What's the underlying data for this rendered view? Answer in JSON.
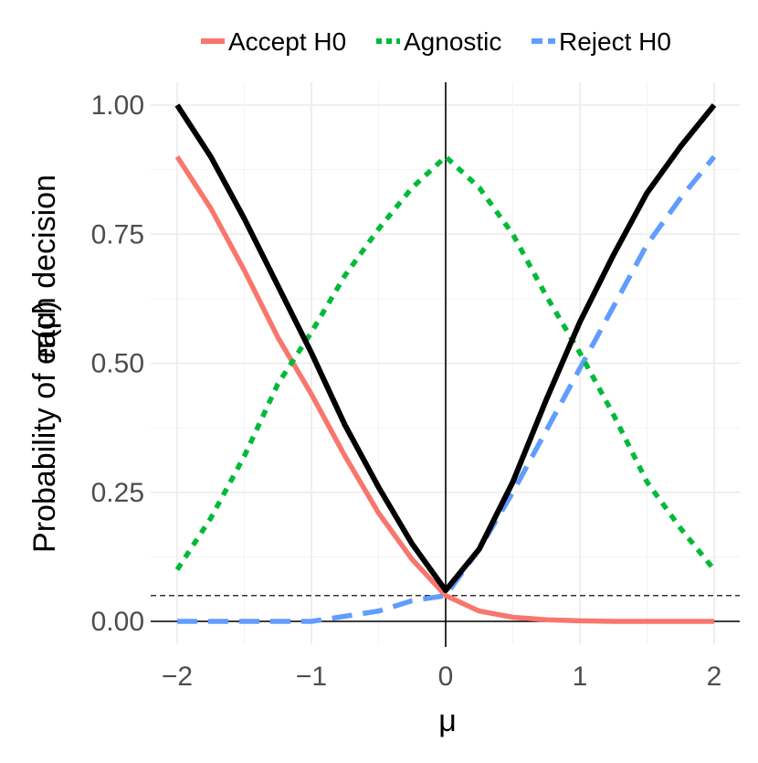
{
  "chart_data": {
    "type": "line",
    "xlabel": "μ",
    "ylabel": "Probability of each decision",
    "ylabel_overlay": "π(μ)",
    "xlim": [
      -2.2,
      2.2
    ],
    "ylim": [
      0,
      1
    ],
    "grid": true,
    "legend_position": "top",
    "x_ticks": [
      -2,
      -1,
      0,
      1,
      2
    ],
    "x_tick_labels": [
      "−2",
      "−1",
      "0",
      "1",
      "2"
    ],
    "y_ticks": [
      0,
      0.25,
      0.5,
      0.75,
      1.0
    ],
    "y_tick_labels": [
      "0.00",
      "0.25",
      "0.50",
      "0.75",
      "1.00"
    ],
    "alpha_reference": 0.05,
    "series": [
      {
        "name": "Accept H0",
        "color": "#F8766D",
        "dash": "solid",
        "x": [
          -2.0,
          -1.75,
          -1.5,
          -1.25,
          -1.0,
          -0.75,
          -0.5,
          -0.25,
          0.0,
          0.25,
          0.5,
          0.75,
          1.0,
          1.25,
          1.5,
          1.75,
          2.0
        ],
        "values": [
          0.9,
          0.8,
          0.68,
          0.55,
          0.44,
          0.32,
          0.21,
          0.12,
          0.05,
          0.02,
          0.008,
          0.003,
          0.001,
          0.0,
          0.0,
          0.0,
          0.0
        ]
      },
      {
        "name": "Agnostic",
        "color": "#00BA38",
        "dash": "dotted",
        "x": [
          -2.0,
          -1.75,
          -1.5,
          -1.25,
          -1.0,
          -0.75,
          -0.5,
          -0.25,
          0.0,
          0.25,
          0.5,
          0.75,
          1.0,
          1.25,
          1.5,
          1.75,
          2.0
        ],
        "values": [
          0.1,
          0.2,
          0.32,
          0.46,
          0.56,
          0.67,
          0.76,
          0.84,
          0.9,
          0.84,
          0.75,
          0.63,
          0.52,
          0.4,
          0.27,
          0.18,
          0.1
        ]
      },
      {
        "name": "Reject H0",
        "color": "#619CFF",
        "dash": "dashed",
        "x": [
          -2.0,
          -1.75,
          -1.5,
          -1.25,
          -1.0,
          -0.75,
          -0.5,
          -0.25,
          0.0,
          0.25,
          0.5,
          0.75,
          1.0,
          1.25,
          1.5,
          1.75,
          2.0
        ],
        "values": [
          0.0,
          0.0,
          0.0,
          0.0,
          0.0,
          0.01,
          0.02,
          0.04,
          0.05,
          0.14,
          0.25,
          0.37,
          0.49,
          0.61,
          0.73,
          0.82,
          0.9
        ]
      },
      {
        "name": "π(μ)",
        "color": "#000000",
        "dash": "solid",
        "x": [
          -2.0,
          -1.75,
          -1.5,
          -1.25,
          -1.0,
          -0.75,
          -0.5,
          -0.25,
          0.0,
          0.25,
          0.5,
          0.75,
          1.0,
          1.25,
          1.5,
          1.75,
          2.0
        ],
        "values": [
          1.0,
          0.9,
          0.78,
          0.65,
          0.52,
          0.38,
          0.26,
          0.15,
          0.06,
          0.14,
          0.27,
          0.43,
          0.58,
          0.71,
          0.83,
          0.92,
          1.0
        ]
      }
    ]
  }
}
